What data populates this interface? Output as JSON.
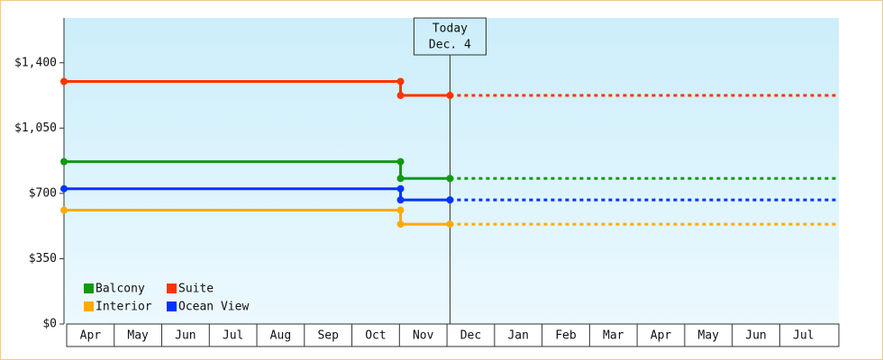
{
  "chart_data": {
    "type": "step-line",
    "categories": [
      "Apr",
      "May",
      "Jun",
      "Jul",
      "Aug",
      "Sep",
      "Oct",
      "Nov",
      "Dec",
      "Jan",
      "Feb",
      "Mar",
      "Apr",
      "May",
      "Jun",
      "Jul"
    ],
    "xlim": [
      0,
      16.3
    ],
    "ylim": [
      0,
      1640
    ],
    "yticks": [
      {
        "value": 0,
        "label": "$0"
      },
      {
        "value": 350,
        "label": "$350"
      },
      {
        "value": 700,
        "label": "$700"
      },
      {
        "value": 1050,
        "label": "$1,050"
      },
      {
        "value": 1400,
        "label": "$1,400"
      }
    ],
    "annotation": {
      "lines": [
        "Today",
        "Dec. 4"
      ],
      "x": 8.12
    },
    "legend": "bottom-left",
    "series": [
      {
        "name": "Balcony",
        "color": "#119911",
        "x": [
          0,
          7.08,
          7.08,
          8.12
        ],
        "values": [
          870,
          870,
          780,
          780
        ]
      },
      {
        "name": "Suite",
        "color": "#ff3300",
        "x": [
          0,
          7.08,
          7.08,
          8.12
        ],
        "values": [
          1300,
          1300,
          1225,
          1225
        ]
      },
      {
        "name": "Interior",
        "color": "#ffaa00",
        "x": [
          0,
          7.08,
          7.08,
          8.12
        ],
        "values": [
          610,
          610,
          535,
          535
        ]
      },
      {
        "name": "Ocean View",
        "color": "#0033ff",
        "x": [
          0,
          7.08,
          7.08,
          8.12
        ],
        "values": [
          725,
          725,
          665,
          665
        ]
      }
    ]
  }
}
